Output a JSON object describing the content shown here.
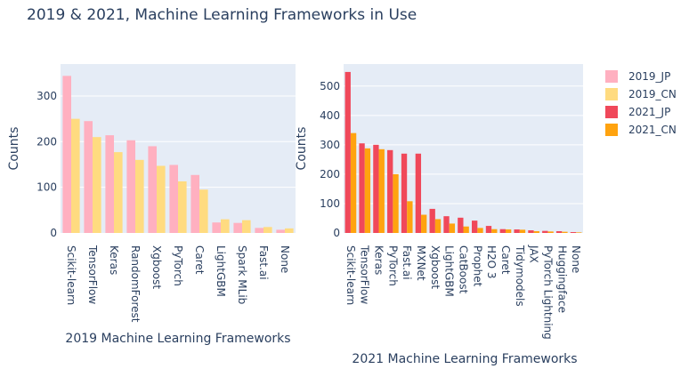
{
  "title": "2019 & 2021, Machine Learning Frameworks in Use",
  "chart_data": [
    {
      "type": "bar",
      "title": "",
      "xlabel": "2019 Machine Learning Frameworks",
      "ylabel": "Counts",
      "ylim": [
        0,
        370
      ],
      "yticks": [
        0,
        100,
        200,
        300
      ],
      "grid": true,
      "categories": [
        "Scikit-learn",
        "TensorFlow",
        "Keras",
        "RandomForest",
        "Xgboost",
        "PyTorch",
        "Caret",
        "LightGBM",
        "Spark MLib",
        "Fast.ai",
        "None"
      ],
      "series": [
        {
          "name": "2019_JP",
          "color": "#ffb0c0",
          "values": [
            344,
            245,
            214,
            203,
            190,
            149,
            127,
            23,
            22,
            11,
            7
          ]
        },
        {
          "name": "2019_CN",
          "color": "#ffdb80",
          "values": [
            250,
            210,
            177,
            160,
            147,
            113,
            95,
            30,
            28,
            13,
            10
          ]
        }
      ]
    },
    {
      "type": "bar",
      "title": "",
      "xlabel": "2021 Machine Learning Frameworks",
      "ylabel": "Counts",
      "ylim": [
        0,
        575
      ],
      "yticks": [
        0,
        100,
        200,
        300,
        400,
        500
      ],
      "grid": true,
      "categories": [
        "Scikit-learn",
        "TensorFlow",
        "Keras",
        "PyTorch",
        "Fast.ai",
        "MXNet",
        "Xgboost",
        "LightGBM",
        "CatBoost",
        "Prophet",
        "H2O 3",
        "Caret",
        "Tidymodels",
        "JAX",
        "PyTorch Lightning",
        "Huggingface",
        "None"
      ],
      "series": [
        {
          "name": "2021_JP",
          "color": "#f0485a",
          "values": [
            548,
            305,
            300,
            282,
            270,
            270,
            82,
            57,
            52,
            42,
            24,
            13,
            12,
            9,
            7,
            6,
            3
          ]
        },
        {
          "name": "2021_CN",
          "color": "#ffa30f",
          "values": [
            340,
            288,
            285,
            200,
            108,
            62,
            47,
            32,
            22,
            17,
            13,
            12,
            11,
            6,
            5,
            4,
            2
          ]
        }
      ]
    }
  ],
  "legend": {
    "position": "top-right",
    "items": [
      {
        "label": "2019_JP",
        "color": "#ffb0c0"
      },
      {
        "label": "2019_CN",
        "color": "#ffdb80"
      },
      {
        "label": "2021_JP",
        "color": "#f0485a"
      },
      {
        "label": "2021_CN",
        "color": "#ffa30f"
      }
    ]
  }
}
